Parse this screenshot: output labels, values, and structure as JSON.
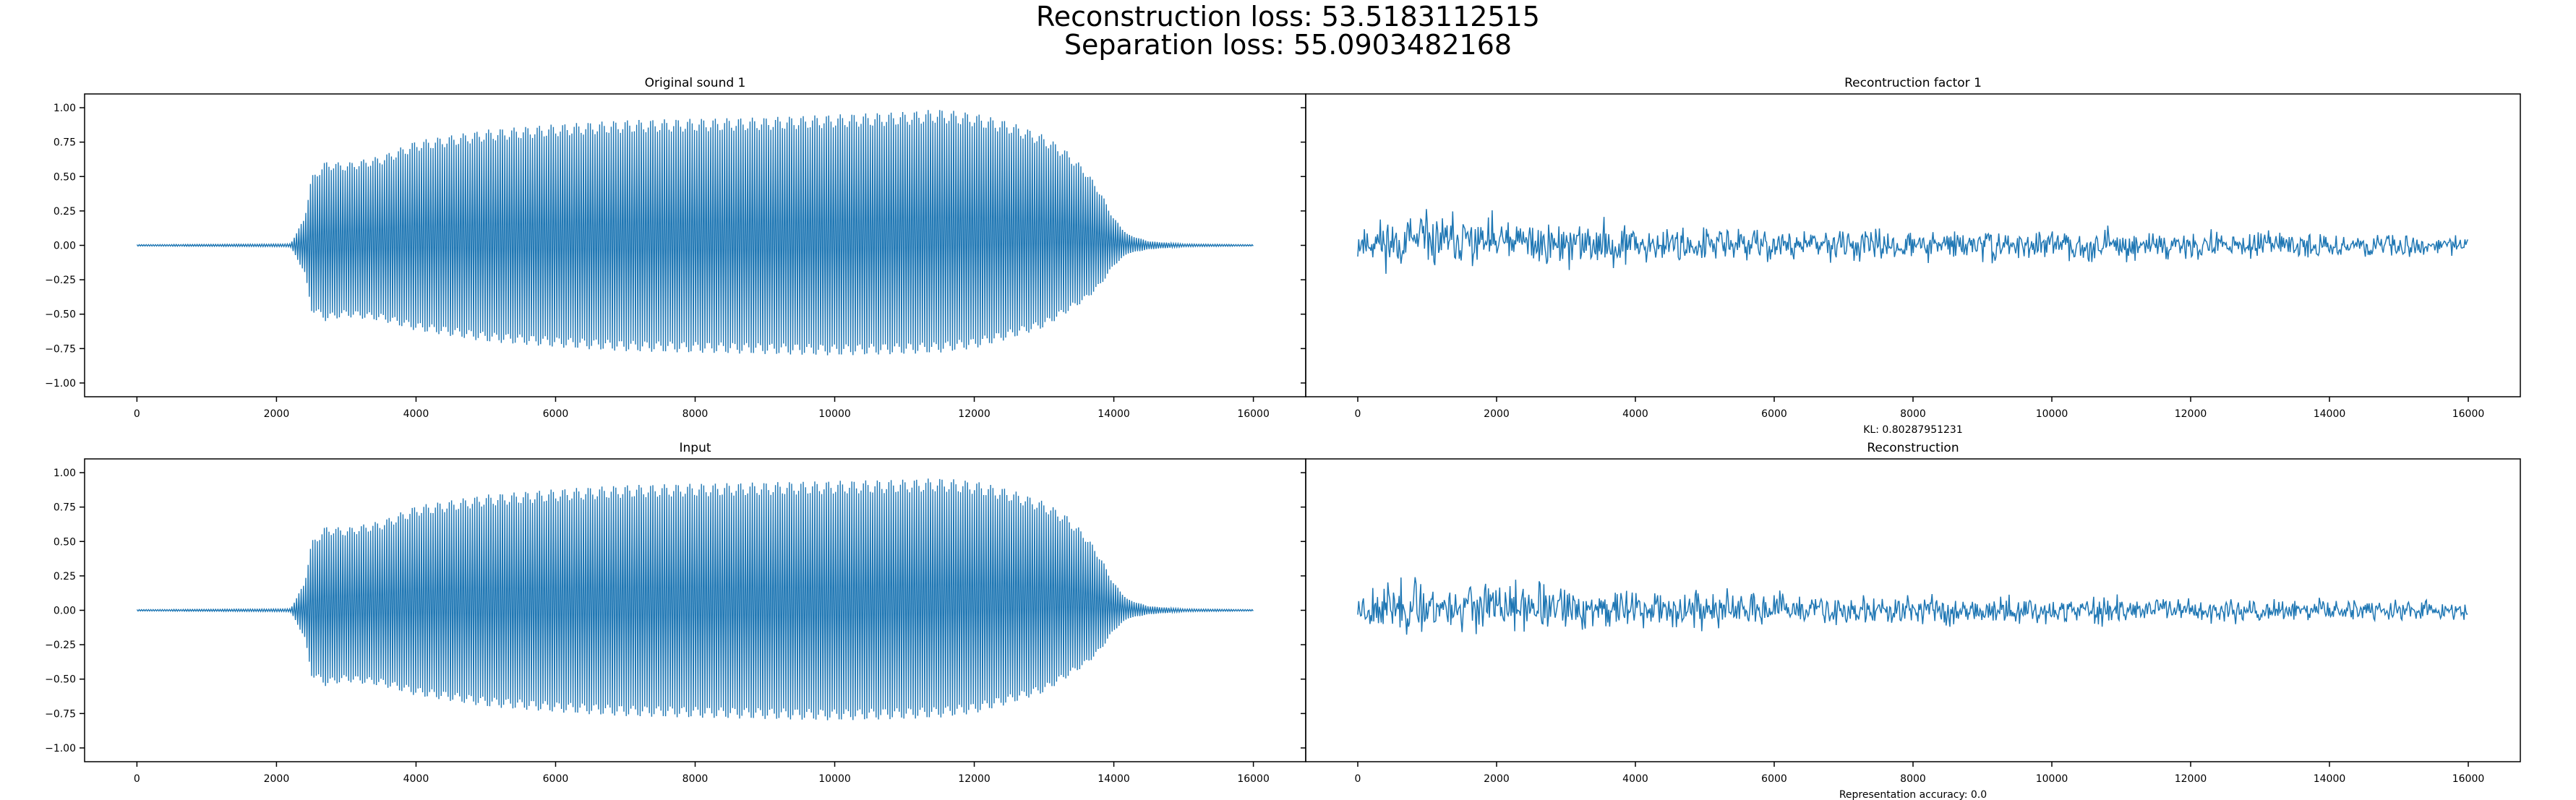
{
  "figure": {
    "suptitle_line1": "Reconstruction loss: 53.5183112515",
    "suptitle_line2": "Separation loss: 55.0903482168",
    "wave_color": "#1f77b4"
  },
  "chart_data": [
    {
      "type": "line",
      "title": "Original sound 1",
      "xlabel": "",
      "ylabel": "",
      "xlim": [
        -750,
        16750
      ],
      "ylim": [
        -1.1,
        1.1
      ],
      "x_ticks": [
        0,
        2000,
        4000,
        6000,
        8000,
        10000,
        12000,
        14000,
        16000
      ],
      "y_ticks": [
        -1.0,
        -0.75,
        -0.5,
        -0.25,
        0.0,
        0.25,
        0.5,
        0.75,
        1.0
      ],
      "y_tick_labels": [
        "−1.00",
        "−0.75",
        "−0.50",
        "−0.25",
        "0.00",
        "0.25",
        "0.50",
        "0.75",
        "1.00"
      ],
      "x_tick_labels": [
        "0",
        "2000",
        "4000",
        "6000",
        "8000",
        "10000",
        "12000",
        "14000",
        "16000"
      ],
      "grid": false,
      "series": [
        {
          "kind": "envelope",
          "x": [
            0,
            2200,
            2400,
            2500,
            2700,
            3000,
            3500,
            4000,
            5000,
            6000,
            7000,
            8000,
            9000,
            10000,
            11000,
            11500,
            12000,
            12500,
            13000,
            13300,
            13600,
            13800,
            14000,
            14200,
            14500,
            15000,
            16000
          ],
          "upper": [
            0.005,
            0.01,
            0.2,
            0.5,
            0.61,
            0.6,
            0.65,
            0.76,
            0.84,
            0.88,
            0.91,
            0.92,
            0.93,
            0.95,
            0.97,
            0.99,
            0.96,
            0.9,
            0.8,
            0.7,
            0.55,
            0.4,
            0.2,
            0.08,
            0.03,
            0.01,
            0.005
          ],
          "lower": [
            -0.005,
            -0.01,
            -0.2,
            -0.48,
            -0.55,
            -0.52,
            -0.55,
            -0.62,
            -0.7,
            -0.74,
            -0.77,
            -0.78,
            -0.79,
            -0.8,
            -0.79,
            -0.78,
            -0.75,
            -0.68,
            -0.6,
            -0.5,
            -0.4,
            -0.3,
            -0.15,
            -0.06,
            -0.03,
            -0.01,
            -0.005
          ]
        }
      ]
    },
    {
      "type": "line",
      "title": "Recontruction factor 1",
      "xlabel": "KL: 0.80287951231",
      "ylabel": "",
      "xlim": [
        -750,
        16750
      ],
      "ylim": [
        -1.1,
        1.1
      ],
      "x_ticks": [
        0,
        2000,
        4000,
        6000,
        8000,
        10000,
        12000,
        14000,
        16000
      ],
      "x_tick_labels": [
        "0",
        "2000",
        "4000",
        "6000",
        "8000",
        "10000",
        "12000",
        "14000",
        "16000"
      ],
      "grid": false,
      "series": [
        {
          "kind": "noise",
          "x": [
            0,
            1000,
            2000,
            3000,
            4000,
            6000,
            8000,
            10000,
            12000,
            14000,
            16000
          ],
          "amplitude": [
            0.24,
            0.27,
            0.26,
            0.22,
            0.2,
            0.17,
            0.15,
            0.14,
            0.13,
            0.12,
            0.1
          ],
          "offset": [
            0.02,
            0.03,
            0.02,
            0.01,
            0.01,
            0.0,
            0.0,
            0.0,
            0.0,
            0.0,
            0.0
          ],
          "seed": 11
        }
      ]
    },
    {
      "type": "line",
      "title": "Input",
      "xlabel": "",
      "ylabel": "",
      "xlim": [
        -750,
        16750
      ],
      "ylim": [
        -1.1,
        1.1
      ],
      "x_ticks": [
        0,
        2000,
        4000,
        6000,
        8000,
        10000,
        12000,
        14000,
        16000
      ],
      "y_ticks": [
        -1.0,
        -0.75,
        -0.5,
        -0.25,
        0.0,
        0.25,
        0.5,
        0.75,
        1.0
      ],
      "y_tick_labels": [
        "−1.00",
        "−0.75",
        "−0.50",
        "−0.25",
        "0.00",
        "0.25",
        "0.50",
        "0.75",
        "1.00"
      ],
      "x_tick_labels": [
        "0",
        "2000",
        "4000",
        "6000",
        "8000",
        "10000",
        "12000",
        "14000",
        "16000"
      ],
      "grid": false,
      "series": [
        {
          "kind": "envelope",
          "x": [
            0,
            2200,
            2400,
            2500,
            2700,
            3000,
            3500,
            4000,
            5000,
            6000,
            7000,
            8000,
            9000,
            10000,
            11000,
            11500,
            12000,
            12500,
            13000,
            13300,
            13600,
            13800,
            14000,
            14200,
            14500,
            15000,
            16000
          ],
          "upper": [
            0.005,
            0.01,
            0.2,
            0.5,
            0.61,
            0.6,
            0.65,
            0.76,
            0.84,
            0.88,
            0.91,
            0.92,
            0.93,
            0.94,
            0.95,
            0.96,
            0.94,
            0.88,
            0.79,
            0.7,
            0.55,
            0.4,
            0.2,
            0.08,
            0.03,
            0.01,
            0.005
          ],
          "lower": [
            -0.005,
            -0.01,
            -0.2,
            -0.48,
            -0.55,
            -0.52,
            -0.55,
            -0.62,
            -0.7,
            -0.74,
            -0.77,
            -0.78,
            -0.79,
            -0.8,
            -0.79,
            -0.78,
            -0.75,
            -0.68,
            -0.6,
            -0.5,
            -0.4,
            -0.3,
            -0.15,
            -0.06,
            -0.03,
            -0.01,
            -0.005
          ]
        }
      ]
    },
    {
      "type": "line",
      "title": "Reconstruction",
      "xlabel": "Representation accuracy: 0.0",
      "ylabel": "",
      "xlim": [
        -750,
        16750
      ],
      "ylim": [
        -1.1,
        1.1
      ],
      "x_ticks": [
        0,
        2000,
        4000,
        6000,
        8000,
        10000,
        12000,
        14000,
        16000
      ],
      "x_tick_labels": [
        "0",
        "2000",
        "4000",
        "6000",
        "8000",
        "10000",
        "12000",
        "14000",
        "16000"
      ],
      "grid": false,
      "series": [
        {
          "kind": "noise",
          "x": [
            0,
            1000,
            2000,
            3000,
            4000,
            6000,
            8000,
            10000,
            12000,
            14000,
            16000
          ],
          "amplitude": [
            0.24,
            0.27,
            0.26,
            0.22,
            0.2,
            0.17,
            0.15,
            0.14,
            0.13,
            0.12,
            0.1
          ],
          "offset": [
            0.02,
            0.03,
            0.02,
            0.01,
            0.01,
            0.0,
            0.0,
            0.0,
            0.0,
            0.0,
            0.0
          ],
          "seed": 23
        }
      ]
    }
  ]
}
